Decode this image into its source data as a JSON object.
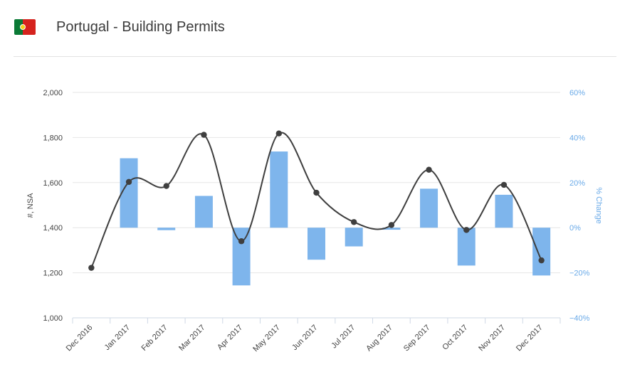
{
  "header": {
    "title": "Portugal - Building Permits",
    "flag_icon": "portugal-flag-icon",
    "flag_colors": {
      "green": "#0a7a36",
      "red": "#d5231e",
      "emblem": "#f2d21b"
    }
  },
  "colors": {
    "bar": "#7eb5ec",
    "line": "#3f3f3f",
    "right_axis": "#6aaae8",
    "grid": "#e6e6e6"
  },
  "chart_data": {
    "type": "bar+line",
    "title": "Portugal - Building Permits",
    "categories": [
      "Dec 2016",
      "Jan 2017",
      "Feb 2017",
      "Mar 2017",
      "Apr 2017",
      "May 2017",
      "Jun 2017",
      "Jul 2017",
      "Aug 2017",
      "Sep 2017",
      "Oct 2017",
      "Nov 2017",
      "Dec 2017"
    ],
    "series": [
      {
        "type": "line",
        "axis": "left",
        "values": [
          1222,
          1603,
          1585,
          1812,
          1340,
          1818,
          1555,
          1425,
          1412,
          1657,
          1390,
          1590,
          1255
        ]
      },
      {
        "type": "bar",
        "axis": "right",
        "values": [
          null,
          30.8,
          -1.1,
          14.1,
          -25.6,
          33.8,
          -14.2,
          -8.3,
          -0.9,
          17.3,
          -16.8,
          14.6,
          -21.2
        ]
      }
    ],
    "ylabel": "#, NSA",
    "y2label": "% Change",
    "ylim": [
      1000,
      2000
    ],
    "y2lim": [
      -40,
      60
    ],
    "yticks": [
      "2,000",
      "1,800",
      "1,600",
      "1,400",
      "1,200",
      "1,000"
    ],
    "y2ticks": [
      "60%",
      "40%",
      "20%",
      "0%",
      "−20%",
      "−40%"
    ],
    "grid": true,
    "legend": "none"
  }
}
